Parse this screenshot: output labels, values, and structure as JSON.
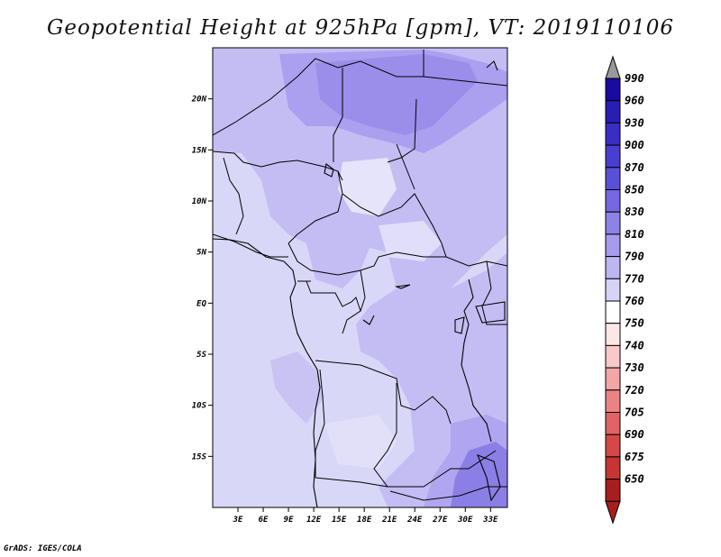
{
  "title": "Geopotential Height at 925hPa [gpm], VT: 2019110106",
  "credit": "GrADS: IGES/COLA",
  "map": {
    "lon_labels": [
      "3E",
      "6E",
      "9E",
      "12E",
      "15E",
      "18E",
      "21E",
      "24E",
      "27E",
      "30E",
      "33E"
    ],
    "lat_labels": [
      "20N",
      "15N",
      "10N",
      "5N",
      "EQ",
      "5S",
      "10S",
      "15S"
    ],
    "lon_values": [
      3,
      6,
      9,
      12,
      15,
      18,
      21,
      24,
      27,
      30,
      33
    ],
    "lat_values": [
      20,
      15,
      10,
      5,
      0,
      -5,
      -10,
      -15
    ],
    "lon_range": [
      0,
      35
    ],
    "lat_range": [
      -20,
      25
    ]
  },
  "legend": {
    "levels": [
      "990",
      "960",
      "930",
      "900",
      "870",
      "850",
      "830",
      "810",
      "790",
      "770",
      "760",
      "750",
      "740",
      "730",
      "720",
      "705",
      "690",
      "675",
      "650"
    ],
    "colors": [
      "#1a0aa0",
      "#2a1db4",
      "#3a2dc4",
      "#4a3ed0",
      "#5a50d8",
      "#7668e0",
      "#8d82e6",
      "#a69ceb",
      "#bcb6f1",
      "#d6d3f7",
      "#ffffff",
      "#fde6e6",
      "#f9c8c8",
      "#f2a6a6",
      "#ea8484",
      "#e06464",
      "#d44848",
      "#c63434",
      "#a81e1e"
    ],
    "top_arrow_color": "#999999",
    "bottom_arrow_color": "#a81e1e"
  }
}
